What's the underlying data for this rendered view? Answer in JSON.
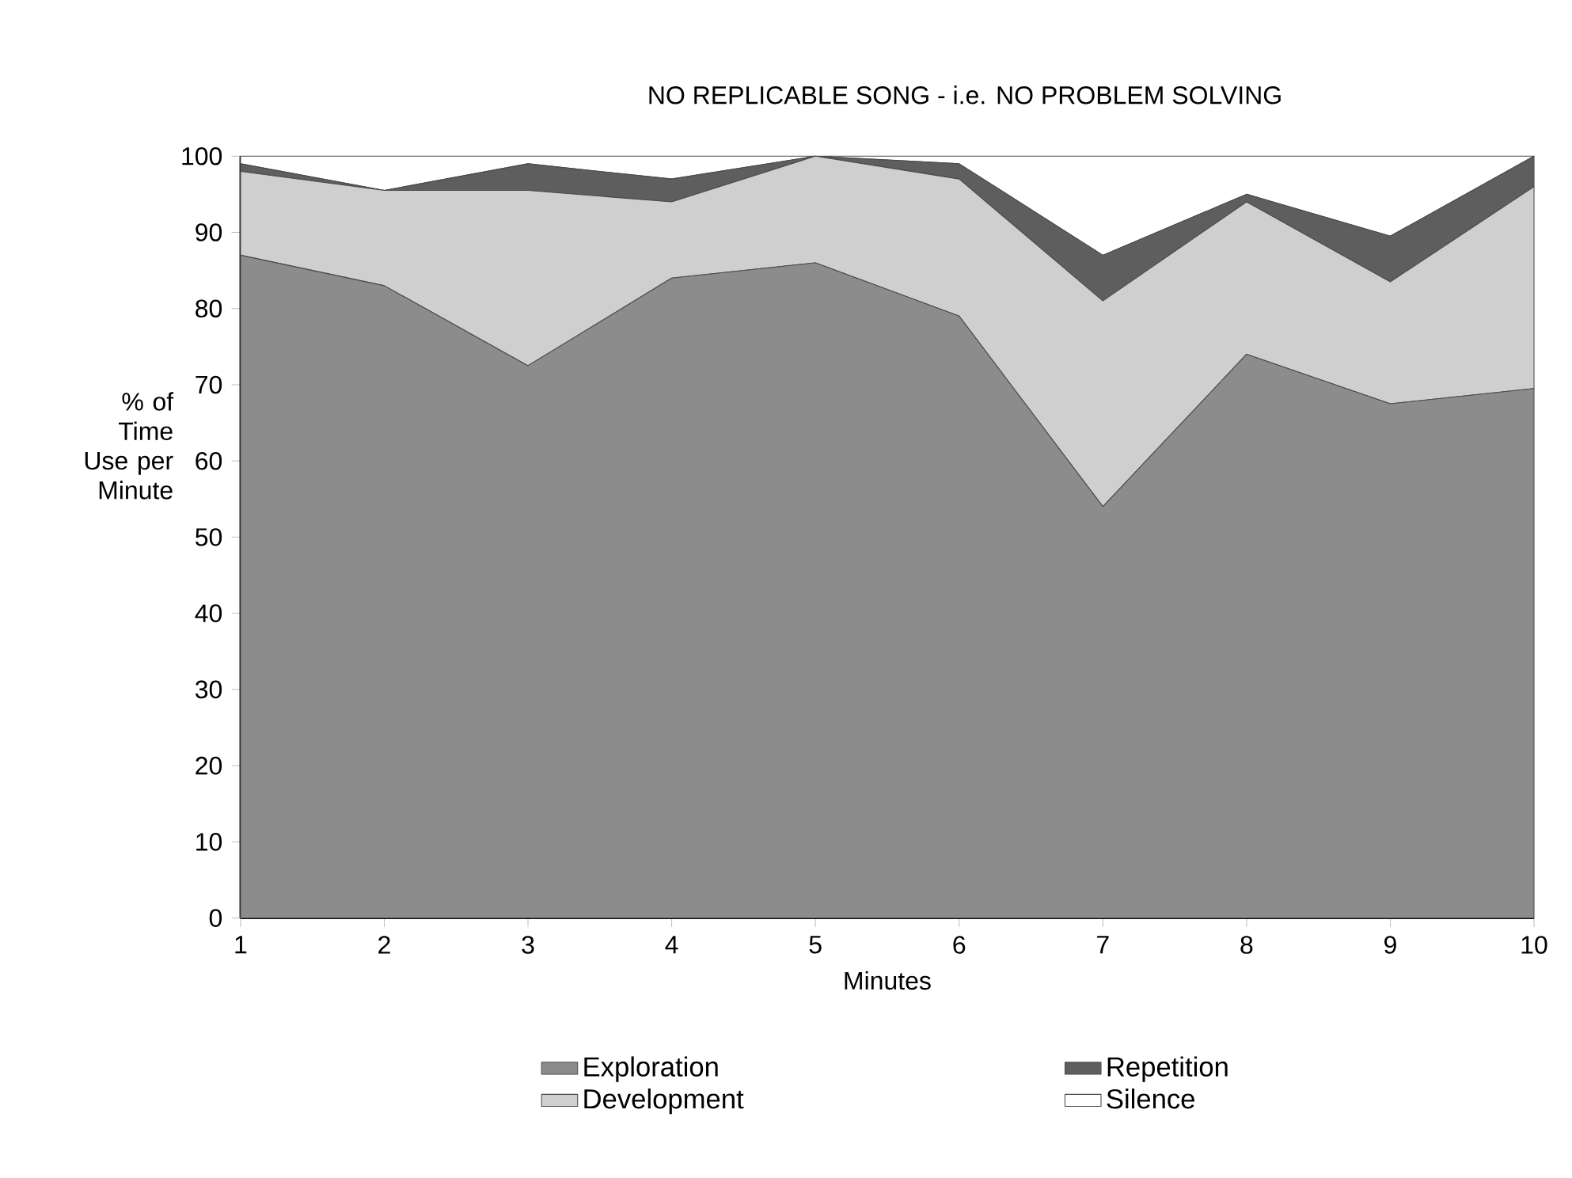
{
  "chart_data": {
    "type": "area",
    "stacked": true,
    "title": "NO REPLICABLE SONG  -  i.e. NO PROBLEM SOLVING",
    "xlabel": "Minutes",
    "ylabel": "% of Time Use per Minute",
    "x": [
      1,
      2,
      3,
      4,
      5,
      6,
      7,
      8,
      9,
      10
    ],
    "series": [
      {
        "name": "Exploration",
        "color": "#8c8c8c",
        "values": [
          87,
          83,
          72.5,
          84,
          86,
          79,
          54,
          74,
          67.5,
          69.5
        ]
      },
      {
        "name": "Development",
        "color": "#cfcfcf",
        "values": [
          11,
          12.5,
          23,
          10,
          14,
          18,
          27,
          20,
          16,
          26.5
        ]
      },
      {
        "name": "Repetition",
        "color": "#5e5e5e",
        "values": [
          1,
          0,
          3.5,
          3,
          0,
          2,
          6,
          1,
          6,
          4
        ]
      },
      {
        "name": "Silence",
        "color": "#ffffff",
        "values": [
          1,
          4.5,
          1,
          3,
          0,
          1,
          13,
          5,
          10.5,
          0
        ]
      }
    ],
    "xlim": [
      1,
      10
    ],
    "ylim": [
      0,
      100
    ],
    "xticks": [
      1,
      2,
      3,
      4,
      5,
      6,
      7,
      8,
      9,
      10
    ],
    "yticks": [
      0,
      10,
      20,
      30,
      40,
      50,
      60,
      70,
      80,
      90,
      100
    ],
    "legend": "bottom"
  }
}
